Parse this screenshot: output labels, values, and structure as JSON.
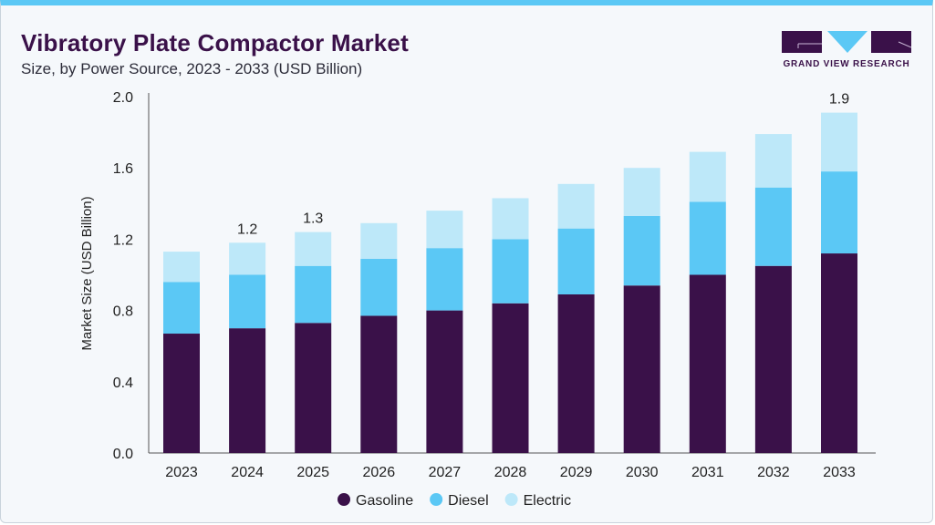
{
  "header": {
    "title": "Vibratory Plate Compactor Market",
    "subtitle": "Size, by Power Source, 2023 - 2033 (USD Billion)"
  },
  "logo": {
    "text": "GRAND VIEW RESEARCH"
  },
  "colors": {
    "Gasoline": "#3a1149",
    "Diesel": "#5bc8f5",
    "Electric": "#bde8f9",
    "accent": "#5bc8f5"
  },
  "chart_data": {
    "type": "bar",
    "stacked": true,
    "title": "Vibratory Plate Compactor Market",
    "xlabel": "",
    "ylabel": "Market Size (USD Billion)",
    "ylim": [
      0,
      2.0
    ],
    "yticks": [
      "0.0",
      "0.4",
      "0.8",
      "1.2",
      "1.6",
      "2.0"
    ],
    "categories": [
      "2023",
      "2024",
      "2025",
      "2026",
      "2027",
      "2028",
      "2029",
      "2030",
      "2031",
      "2032",
      "2033"
    ],
    "series": [
      {
        "name": "Gasoline",
        "values": [
          0.67,
          0.7,
          0.73,
          0.77,
          0.8,
          0.84,
          0.89,
          0.94,
          1.0,
          1.05,
          1.12
        ]
      },
      {
        "name": "Diesel",
        "values": [
          0.29,
          0.3,
          0.32,
          0.32,
          0.35,
          0.36,
          0.37,
          0.39,
          0.41,
          0.44,
          0.46
        ]
      },
      {
        "name": "Electric",
        "values": [
          0.17,
          0.18,
          0.19,
          0.2,
          0.21,
          0.23,
          0.25,
          0.27,
          0.28,
          0.3,
          0.33
        ]
      }
    ],
    "data_labels": {
      "2024": "1.2",
      "2025": "1.3",
      "2033": "1.9"
    },
    "legend_position": "bottom",
    "grid": false
  }
}
